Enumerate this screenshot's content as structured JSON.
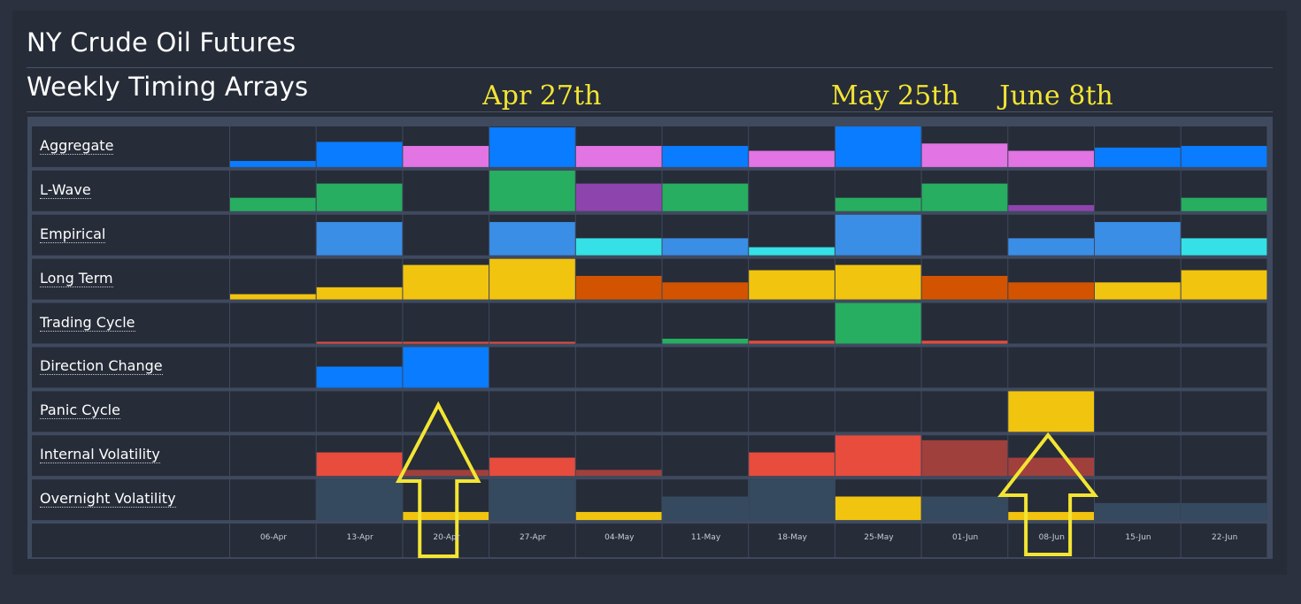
{
  "header": {
    "title": "NY Crude Oil Futures",
    "subtitle": "Weekly Timing Arrays"
  },
  "chart_data": {
    "type": "heatmap",
    "title": "Weekly Timing Arrays",
    "categories": [
      "06-Apr",
      "13-Apr",
      "20-Apr",
      "27-Apr",
      "04-May",
      "11-May",
      "18-May",
      "25-May",
      "01-Jun",
      "08-Jun",
      "15-Jun",
      "22-Jun"
    ],
    "colors": {
      "blue": "#0a7cff",
      "pink": "#e274e4",
      "green": "#27ae60",
      "purple": "#8e44ad",
      "lightblue": "#3a8ee6",
      "cyan": "#35e0e6",
      "yellow": "#f1c40f",
      "orange": "#d35400",
      "red": "#e74c3c",
      "darkred": "#a0403c",
      "slate": "#354a5f"
    },
    "series": [
      {
        "name": "Aggregate",
        "values": [
          0.15,
          0.62,
          0.52,
          0.98,
          0.52,
          0.52,
          0.4,
          1.0,
          0.58,
          0.4,
          0.48,
          0.52
        ],
        "colors": [
          "blue",
          "blue",
          "pink",
          "blue",
          "pink",
          "blue",
          "pink",
          "blue",
          "pink",
          "pink",
          "blue",
          "blue"
        ]
      },
      {
        "name": "L-Wave",
        "values": [
          0.33,
          0.68,
          0,
          1.0,
          0.68,
          0.68,
          0,
          0.33,
          0.68,
          0.15,
          0,
          0.33
        ],
        "colors": [
          "green",
          "green",
          "green",
          "green",
          "purple",
          "green",
          "green",
          "green",
          "green",
          "purple",
          "green",
          "green"
        ]
      },
      {
        "name": "Empirical",
        "values": [
          0,
          0.82,
          0,
          0.82,
          0.42,
          0.42,
          0.2,
          1.0,
          0,
          0.42,
          0.82,
          0.42
        ],
        "colors": [
          "lightblue",
          "lightblue",
          "lightblue",
          "lightblue",
          "cyan",
          "lightblue",
          "cyan",
          "lightblue",
          "lightblue",
          "lightblue",
          "lightblue",
          "cyan"
        ]
      },
      {
        "name": "Long Term",
        "values": [
          0.13,
          0.3,
          0.85,
          1.0,
          0.58,
          0.42,
          0.72,
          0.85,
          0.58,
          0.42,
          0.42,
          0.72
        ],
        "colors": [
          "yellow",
          "yellow",
          "yellow",
          "yellow",
          "orange",
          "orange",
          "yellow",
          "yellow",
          "orange",
          "orange",
          "yellow",
          "yellow"
        ]
      },
      {
        "name": "Trading Cycle",
        "values": [
          0,
          0.04,
          0.04,
          0.04,
          0,
          0.12,
          0.07,
          1.0,
          0.07,
          0,
          0,
          0
        ],
        "colors": [
          "red",
          "red",
          "red",
          "red",
          "red",
          "green",
          "red",
          "green",
          "red",
          "red",
          "red",
          "red"
        ]
      },
      {
        "name": "Direction Change",
        "values": [
          0,
          0.52,
          1.0,
          0,
          0,
          0,
          0,
          0,
          0,
          0,
          0,
          0
        ],
        "colors": [
          "blue",
          "blue",
          "blue",
          "blue",
          "blue",
          "blue",
          "blue",
          "blue",
          "blue",
          "blue",
          "blue",
          "blue"
        ]
      },
      {
        "name": "Panic Cycle",
        "values": [
          0,
          0,
          0,
          0,
          0,
          0,
          0,
          0,
          0,
          1.0,
          0,
          0
        ],
        "colors": [
          "yellow",
          "yellow",
          "yellow",
          "yellow",
          "yellow",
          "yellow",
          "yellow",
          "yellow",
          "yellow",
          "yellow",
          "yellow",
          "yellow"
        ]
      },
      {
        "name": "Internal Volatility",
        "values": [
          0,
          0.58,
          0.15,
          0.45,
          0.15,
          0,
          0.58,
          1.0,
          0.88,
          0.45,
          0,
          0
        ],
        "colors": [
          "red",
          "red",
          "darkred",
          "red",
          "darkred",
          "red",
          "red",
          "red",
          "darkred",
          "darkred",
          "red",
          "red"
        ]
      },
      {
        "name": "Overnight Volatility",
        "values": [
          0,
          1.0,
          0.2,
          1.0,
          0.2,
          0.58,
          1.0,
          0.58,
          0.58,
          0.2,
          0.42,
          0.42
        ],
        "colors": [
          "slate",
          "slate",
          "yellow",
          "slate",
          "yellow",
          "slate",
          "slate",
          "yellow",
          "slate",
          "yellow",
          "slate",
          "slate"
        ]
      }
    ],
    "annotations": [
      {
        "text": "Apr 27th",
        "column": "27-Apr"
      },
      {
        "text": "May 25th",
        "column": "25-May"
      },
      {
        "text": "June 8th",
        "column": "08-Jun"
      }
    ],
    "arrows": [
      {
        "column": "20-Apr",
        "direction": "up",
        "color": "#f3e533"
      },
      {
        "column": "08-Jun",
        "direction": "up",
        "color": "#f3e533"
      }
    ]
  }
}
